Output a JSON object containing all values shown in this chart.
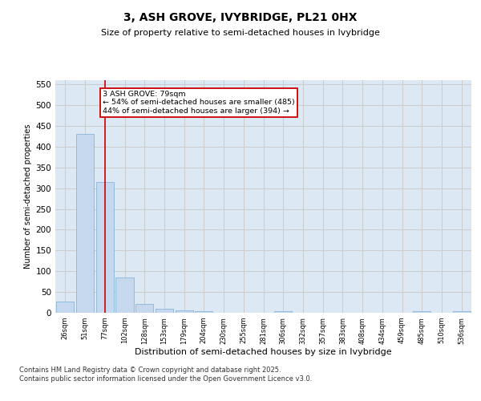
{
  "title": "3, ASH GROVE, IVYBRIDGE, PL21 0HX",
  "subtitle": "Size of property relative to semi-detached houses in Ivybridge",
  "xlabel": "Distribution of semi-detached houses by size in Ivybridge",
  "ylabel": "Number of semi-detached properties",
  "categories": [
    "26sqm",
    "51sqm",
    "77sqm",
    "102sqm",
    "128sqm",
    "153sqm",
    "179sqm",
    "204sqm",
    "230sqm",
    "255sqm",
    "281sqm",
    "306sqm",
    "332sqm",
    "357sqm",
    "383sqm",
    "408sqm",
    "434sqm",
    "459sqm",
    "485sqm",
    "510sqm",
    "536sqm"
  ],
  "values": [
    27,
    430,
    315,
    85,
    22,
    10,
    6,
    4,
    0,
    0,
    0,
    3,
    0,
    0,
    0,
    0,
    0,
    0,
    3,
    0,
    3
  ],
  "bar_color": "#c5d8ed",
  "bar_edge_color": "#7aadd4",
  "vline_x": 2,
  "vline_color": "#cc0000",
  "annotation_text": "3 ASH GROVE: 79sqm\n← 54% of semi-detached houses are smaller (485)\n44% of semi-detached houses are larger (394) →",
  "annotation_box_color": "#ffffff",
  "annotation_box_edge": "#cc0000",
  "ylim": [
    0,
    560
  ],
  "yticks": [
    0,
    50,
    100,
    150,
    200,
    250,
    300,
    350,
    400,
    450,
    500,
    550
  ],
  "grid_color": "#cccccc",
  "bg_color": "#dde8f5",
  "footer": "Contains HM Land Registry data © Crown copyright and database right 2025.\nContains public sector information licensed under the Open Government Licence v3.0."
}
